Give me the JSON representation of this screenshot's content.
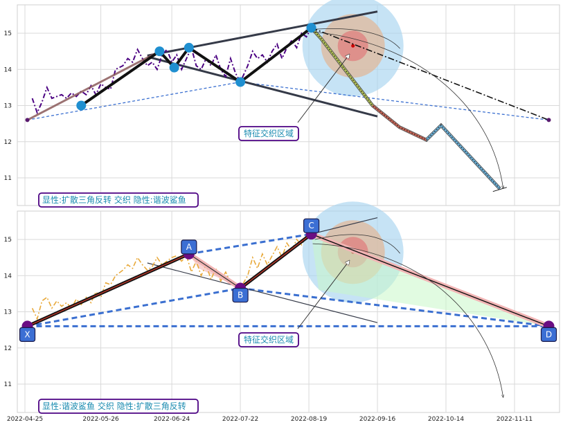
{
  "chart_data": [
    {
      "type": "line",
      "panel": "top",
      "x_axis_ticks": [],
      "ylim": [
        10.3,
        15.8
      ],
      "y_ticks": [
        11,
        12,
        13,
        14,
        15
      ],
      "grid": true,
      "price_series": {
        "color": "#4b0082",
        "style": "dash-dot",
        "points": [
          [
            "2022-04-28",
            13.2
          ],
          [
            "2022-04-30",
            12.8
          ],
          [
            "2022-05-02",
            13.1
          ],
          [
            "2022-05-04",
            13.5
          ],
          [
            "2022-05-06",
            13.2
          ],
          [
            "2022-05-08",
            13.25
          ],
          [
            "2022-05-10",
            13.3
          ],
          [
            "2022-05-12",
            13.2
          ],
          [
            "2022-05-14",
            13.35
          ],
          [
            "2022-05-16",
            13.25
          ],
          [
            "2022-05-18",
            13.4
          ],
          [
            "2022-05-20",
            13.3
          ],
          [
            "2022-05-22",
            13.55
          ],
          [
            "2022-05-24",
            13.3
          ],
          [
            "2022-05-26",
            13.6
          ],
          [
            "2022-05-28",
            13.5
          ],
          [
            "2022-05-30",
            13.45
          ],
          [
            "2022-06-01",
            14.0
          ],
          [
            "2022-06-04",
            14.1
          ],
          [
            "2022-06-06",
            14.3
          ],
          [
            "2022-06-08",
            14.2
          ],
          [
            "2022-06-10",
            14.55
          ],
          [
            "2022-06-12",
            14.3
          ],
          [
            "2022-06-14",
            14.1
          ],
          [
            "2022-06-16",
            14.2
          ],
          [
            "2022-06-18",
            14.0
          ],
          [
            "2022-06-20",
            14.4
          ],
          [
            "2022-06-22",
            14.55
          ],
          [
            "2022-06-24",
            14.2
          ],
          [
            "2022-06-26",
            14.4
          ],
          [
            "2022-06-28",
            14.0
          ],
          [
            "2022-06-30",
            14.3
          ],
          [
            "2022-07-02",
            14.6
          ],
          [
            "2022-07-04",
            14.1
          ],
          [
            "2022-07-06",
            14.0
          ],
          [
            "2022-07-08",
            14.3
          ],
          [
            "2022-07-10",
            14.1
          ],
          [
            "2022-07-12",
            14.4
          ],
          [
            "2022-07-14",
            14.0
          ],
          [
            "2022-07-16",
            13.8
          ],
          [
            "2022-07-18",
            14.3
          ],
          [
            "2022-07-20",
            13.9
          ],
          [
            "2022-07-22",
            13.65
          ],
          [
            "2022-07-25",
            14.1
          ],
          [
            "2022-07-27",
            14.5
          ],
          [
            "2022-07-29",
            14.3
          ],
          [
            "2022-07-31",
            14.4
          ],
          [
            "2022-08-02",
            14.2
          ],
          [
            "2022-08-04",
            14.5
          ],
          [
            "2022-08-06",
            14.7
          ],
          [
            "2022-08-08",
            14.3
          ],
          [
            "2022-08-10",
            14.6
          ],
          [
            "2022-08-12",
            14.8
          ],
          [
            "2022-08-14",
            14.6
          ],
          [
            "2022-08-16",
            15.0
          ],
          [
            "2022-08-18",
            14.9
          ],
          [
            "2022-08-20",
            15.15
          ]
        ]
      },
      "pattern_points": [
        [
          "2022-05-18",
          13.0
        ],
        [
          "2022-06-19",
          14.5
        ],
        [
          "2022-06-25",
          14.05
        ],
        [
          "2022-07-01",
          14.6
        ],
        [
          "2022-07-22",
          13.65
        ],
        [
          "2022-08-20",
          15.15
        ]
      ],
      "upper_trendline": [
        [
          "2022-06-14",
          14.38
        ],
        [
          "2022-09-16",
          15.6
        ]
      ],
      "lower_trendline": [
        [
          "2022-06-14",
          14.35
        ],
        [
          "2022-09-16",
          12.7
        ]
      ],
      "x_anchor": [
        "2022-04-26",
        12.6
      ],
      "d_anchor": [
        "2022-11-25",
        12.6
      ],
      "projection_path": [
        [
          "2022-08-20",
          15.15
        ],
        [
          "2022-08-24",
          14.85
        ],
        [
          "2022-09-14",
          13.0
        ],
        [
          "2022-09-25",
          12.4
        ],
        [
          "2022-10-06",
          12.05
        ],
        [
          "2022-10-12",
          12.45
        ],
        [
          "2022-11-05",
          10.7
        ]
      ],
      "target_zone_center": [
        "2022-09-06",
        14.65
      ],
      "zone_label": "特征交织区域",
      "caption": "显性:扩散三角反转 交织 隐性:谐波鲨鱼"
    },
    {
      "type": "line",
      "panel": "bottom",
      "x_axis_ticks": [
        "2022-04-25",
        "2022-05-26",
        "2022-06-24",
        "2022-07-22",
        "2022-08-19",
        "2022-09-16",
        "2022-10-14",
        "2022-11-11"
      ],
      "ylim": [
        10.3,
        15.8
      ],
      "y_ticks": [
        11,
        12,
        13,
        14,
        15
      ],
      "grid": true,
      "price_series": {
        "color": "#e8a93a",
        "style": "dash-dot",
        "points": [
          [
            "2022-04-28",
            13.1
          ],
          [
            "2022-04-30",
            12.8
          ],
          [
            "2022-05-02",
            13.3
          ],
          [
            "2022-05-04",
            13.4
          ],
          [
            "2022-05-06",
            13.1
          ],
          [
            "2022-05-08",
            13.3
          ],
          [
            "2022-05-10",
            13.15
          ],
          [
            "2022-05-12",
            13.25
          ],
          [
            "2022-05-14",
            13.1
          ],
          [
            "2022-05-16",
            13.35
          ],
          [
            "2022-05-18",
            13.2
          ],
          [
            "2022-05-20",
            13.4
          ],
          [
            "2022-05-22",
            13.25
          ],
          [
            "2022-05-24",
            13.55
          ],
          [
            "2022-05-26",
            13.4
          ],
          [
            "2022-05-28",
            13.8
          ],
          [
            "2022-05-30",
            13.75
          ],
          [
            "2022-06-01",
            14.0
          ],
          [
            "2022-06-04",
            14.15
          ],
          [
            "2022-06-06",
            14.3
          ],
          [
            "2022-06-08",
            14.2
          ],
          [
            "2022-06-10",
            14.5
          ],
          [
            "2022-06-12",
            14.3
          ],
          [
            "2022-06-14",
            14.15
          ],
          [
            "2022-06-16",
            14.25
          ],
          [
            "2022-06-18",
            14.5
          ],
          [
            "2022-06-20",
            14.3
          ],
          [
            "2022-06-22",
            14.4
          ],
          [
            "2022-06-24",
            14.5
          ],
          [
            "2022-06-26",
            14.55
          ],
          [
            "2022-06-28",
            14.4
          ],
          [
            "2022-06-30",
            14.55
          ],
          [
            "2022-07-02",
            14.1
          ],
          [
            "2022-07-04",
            14.4
          ],
          [
            "2022-07-06",
            14.0
          ],
          [
            "2022-07-08",
            14.3
          ],
          [
            "2022-07-10",
            13.9
          ],
          [
            "2022-07-12",
            14.2
          ],
          [
            "2022-07-14",
            13.85
          ],
          [
            "2022-07-16",
            14.1
          ],
          [
            "2022-07-18",
            13.8
          ],
          [
            "2022-07-20",
            13.7
          ],
          [
            "2022-07-22",
            13.65
          ],
          [
            "2022-07-25",
            14.0
          ],
          [
            "2022-07-27",
            14.5
          ],
          [
            "2022-07-29",
            14.2
          ],
          [
            "2022-07-31",
            14.6
          ],
          [
            "2022-08-02",
            14.3
          ],
          [
            "2022-08-04",
            14.55
          ],
          [
            "2022-08-06",
            14.8
          ],
          [
            "2022-08-08",
            14.5
          ],
          [
            "2022-08-10",
            14.9
          ],
          [
            "2022-08-12",
            14.7
          ],
          [
            "2022-08-14",
            15.0
          ],
          [
            "2022-08-16",
            14.85
          ],
          [
            "2022-08-18",
            15.1
          ],
          [
            "2022-08-20",
            15.15
          ]
        ]
      },
      "xabcd_points": [
        {
          "label": "X",
          "date": "2022-04-26",
          "value": 12.6
        },
        {
          "label": "A",
          "date": "2022-07-01",
          "value": 14.6
        },
        {
          "label": "B",
          "date": "2022-07-22",
          "value": 13.65
        },
        {
          "label": "C",
          "date": "2022-08-20",
          "value": 15.15
        },
        {
          "label": "D",
          "date": "2022-11-25",
          "value": 12.6
        }
      ],
      "upper_trendline": [
        [
          "2022-08-20",
          15.15
        ],
        [
          "2022-09-16",
          15.6
        ]
      ],
      "lower_trendline": [
        [
          "2022-06-14",
          14.35
        ],
        [
          "2022-09-16",
          12.7
        ]
      ],
      "target_zone_center": [
        "2022-09-06",
        14.65
      ],
      "zone_label": "特征交织区域",
      "caption": "显性:谐波鲨鱼 交织 隐性:扩散三角反转"
    }
  ],
  "colors": {
    "grid": "#d9d9d9",
    "frame": "#cfcfcf",
    "zone_outer": "#a8d4ef",
    "zone_mid": "#e0b89a",
    "zone_inner": "#e07a7a",
    "label_border": "#4b0082",
    "label_text": "#1a8bb0",
    "marker_blue": "#1f8fd0",
    "marker_purple": "#6a0d83",
    "pt_box": "#3c6fd4",
    "dash_blue": "#3a6fd0",
    "trend_dark": "#353a48"
  }
}
